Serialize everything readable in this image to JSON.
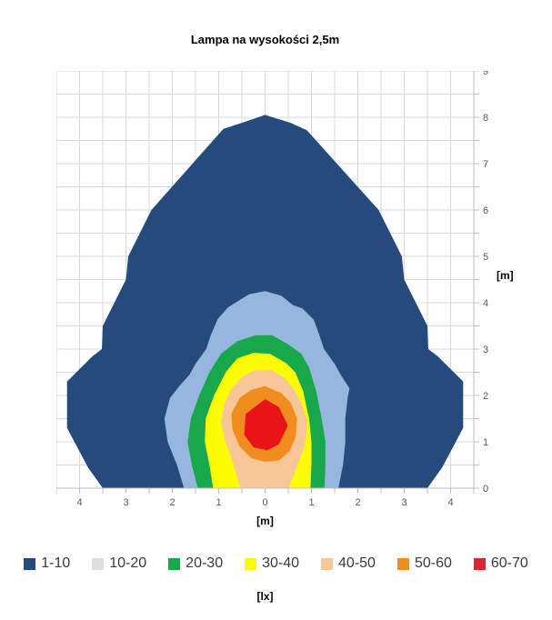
{
  "title": "Lampa na wysokości 2,5m",
  "chart_data": {
    "type": "contour",
    "title": "Lampa na wysokości 2,5m",
    "unit": "lx",
    "x_axis": {
      "unit_label": "[m]",
      "range": [
        -4.5,
        4.5
      ],
      "grid_step": 0.5,
      "ticks": [
        {
          "value": -4,
          "label": "4"
        },
        {
          "value": -3,
          "label": "3"
        },
        {
          "value": -2,
          "label": "2"
        },
        {
          "value": -1,
          "label": "1"
        },
        {
          "value": 0,
          "label": "0"
        },
        {
          "value": 1,
          "label": "1"
        },
        {
          "value": 2,
          "label": "2"
        },
        {
          "value": 3,
          "label": "3"
        },
        {
          "value": 4,
          "label": "4"
        }
      ]
    },
    "y_axis": {
      "unit_label": "[m]",
      "range": [
        0,
        9
      ],
      "grid_step": 0.5,
      "ticks": [
        {
          "value": 0,
          "label": "0"
        },
        {
          "value": 1,
          "label": "1"
        },
        {
          "value": 2,
          "label": "2"
        },
        {
          "value": 3,
          "label": "3"
        },
        {
          "value": 4,
          "label": "4"
        },
        {
          "value": 5,
          "label": "5"
        },
        {
          "value": 6,
          "label": "6"
        },
        {
          "value": 7,
          "label": "7"
        },
        {
          "value": 8,
          "label": "8"
        },
        {
          "value": 9,
          "label": "9"
        }
      ]
    },
    "legend": {
      "unit_label": "[lx]",
      "items": [
        {
          "label": "1-10",
          "swatch_color": "#254B7C"
        },
        {
          "label": "10-20",
          "swatch_color": "#DEDEDE"
        },
        {
          "label": "20-30",
          "swatch_color": "#16A84A"
        },
        {
          "label": "30-40",
          "swatch_color": "#FCFC00"
        },
        {
          "label": "40-50",
          "swatch_color": "#F6C697"
        },
        {
          "label": "50-60",
          "swatch_color": "#F18C1F"
        },
        {
          "label": "60-70",
          "swatch_color": "#D7292F"
        }
      ]
    },
    "colors": {
      "grid": "#D9D9D9",
      "axis": "#BFBFBF",
      "tick_text": "#595959"
    },
    "bands": [
      {
        "range": "1-10",
        "fill": "#254B7C",
        "points": [
          [
            -3.5,
            0
          ],
          [
            -3.82,
            0.45
          ],
          [
            -4.27,
            1.3
          ],
          [
            -4.27,
            2.3
          ],
          [
            -3.72,
            2.85
          ],
          [
            -3.52,
            3.0
          ],
          [
            -3.5,
            3.5
          ],
          [
            -3.0,
            4.5
          ],
          [
            -2.95,
            5.0
          ],
          [
            -2.45,
            6.0
          ],
          [
            -0.9,
            7.75
          ],
          [
            -0.5,
            7.88
          ],
          [
            0,
            8.05
          ],
          [
            0.55,
            7.88
          ],
          [
            0.9,
            7.72
          ],
          [
            2.45,
            6.0
          ],
          [
            2.95,
            5.0
          ],
          [
            3.0,
            4.5
          ],
          [
            3.5,
            3.5
          ],
          [
            3.52,
            3.0
          ],
          [
            3.72,
            2.85
          ],
          [
            4.27,
            2.3
          ],
          [
            4.27,
            1.3
          ],
          [
            3.82,
            0.45
          ],
          [
            3.5,
            0
          ]
        ]
      },
      {
        "range": "10-20",
        "fill": "#97B6DD",
        "points": [
          [
            -1.75,
            0
          ],
          [
            -1.9,
            0.5
          ],
          [
            -2.1,
            1.0
          ],
          [
            -2.17,
            1.5
          ],
          [
            -2.05,
            1.95
          ],
          [
            -1.85,
            2.2
          ],
          [
            -1.63,
            2.45
          ],
          [
            -1.5,
            2.68
          ],
          [
            -1.27,
            3.0
          ],
          [
            -1.17,
            3.3
          ],
          [
            -1.02,
            3.65
          ],
          [
            -0.8,
            3.9
          ],
          [
            -0.35,
            4.18
          ],
          [
            0,
            4.25
          ],
          [
            0.35,
            4.15
          ],
          [
            0.6,
            3.95
          ],
          [
            0.8,
            3.88
          ],
          [
            1.05,
            3.63
          ],
          [
            1.17,
            3.3
          ],
          [
            1.27,
            3.0
          ],
          [
            1.5,
            2.68
          ],
          [
            1.63,
            2.45
          ],
          [
            1.82,
            2.15
          ],
          [
            1.78,
            1.95
          ],
          [
            1.73,
            1.5
          ],
          [
            1.73,
            1.0
          ],
          [
            1.68,
            0.5
          ],
          [
            1.58,
            0
          ]
        ]
      },
      {
        "range": "20-30",
        "fill": "#16A84A",
        "points": [
          [
            -1.45,
            0
          ],
          [
            -1.58,
            0.5
          ],
          [
            -1.67,
            1.0
          ],
          [
            -1.6,
            1.5
          ],
          [
            -1.42,
            2.0
          ],
          [
            -1.2,
            2.5
          ],
          [
            -0.95,
            2.9
          ],
          [
            -0.6,
            3.17
          ],
          [
            -0.2,
            3.3
          ],
          [
            0.15,
            3.3
          ],
          [
            0.5,
            3.1
          ],
          [
            0.78,
            2.9
          ],
          [
            0.95,
            2.6
          ],
          [
            1.1,
            2.1
          ],
          [
            1.22,
            1.5
          ],
          [
            1.3,
            1.0
          ],
          [
            1.3,
            0.5
          ],
          [
            1.28,
            0
          ]
        ]
      },
      {
        "range": "30-40",
        "fill": "#FCFC00",
        "points": [
          [
            -1.12,
            0
          ],
          [
            -1.2,
            0.5
          ],
          [
            -1.3,
            1.0
          ],
          [
            -1.28,
            1.5
          ],
          [
            -1.1,
            2.0
          ],
          [
            -0.85,
            2.5
          ],
          [
            -0.6,
            2.8
          ],
          [
            -0.25,
            2.92
          ],
          [
            0.1,
            2.9
          ],
          [
            0.45,
            2.7
          ],
          [
            0.65,
            2.5
          ],
          [
            0.82,
            2.1
          ],
          [
            0.95,
            1.5
          ],
          [
            1.0,
            1.0
          ],
          [
            1.0,
            0.5
          ],
          [
            0.98,
            0
          ]
        ]
      },
      {
        "range": "40-50",
        "fill": "#F6C697",
        "points": [
          [
            -0.53,
            0
          ],
          [
            -0.68,
            0.5
          ],
          [
            -0.85,
            1.0
          ],
          [
            -0.95,
            1.4
          ],
          [
            -0.88,
            1.8
          ],
          [
            -0.72,
            2.15
          ],
          [
            -0.5,
            2.4
          ],
          [
            -0.25,
            2.53
          ],
          [
            0.12,
            2.55
          ],
          [
            0.42,
            2.38
          ],
          [
            0.65,
            2.1
          ],
          [
            0.82,
            1.75
          ],
          [
            0.92,
            1.35
          ],
          [
            0.85,
            0.9
          ],
          [
            0.7,
            0.5
          ],
          [
            0.51,
            0
          ]
        ]
      },
      {
        "range": "50-60",
        "fill": "#F18C1F",
        "points": [
          [
            0,
            2.2
          ],
          [
            0.35,
            2.05
          ],
          [
            0.55,
            1.85
          ],
          [
            0.69,
            1.5
          ],
          [
            0.66,
            1.1
          ],
          [
            0.53,
            0.8
          ],
          [
            0.3,
            0.6
          ],
          [
            0,
            0.57
          ],
          [
            -0.3,
            0.65
          ],
          [
            -0.55,
            0.9
          ],
          [
            -0.7,
            1.25
          ],
          [
            -0.73,
            1.6
          ],
          [
            -0.55,
            1.95
          ],
          [
            -0.3,
            2.12
          ]
        ]
      },
      {
        "range": "60-70",
        "fill": "#E81417",
        "points": [
          [
            0,
            1.92
          ],
          [
            0.3,
            1.75
          ],
          [
            0.49,
            1.35
          ],
          [
            0.3,
            0.95
          ],
          [
            0.05,
            0.82
          ],
          [
            -0.25,
            0.88
          ],
          [
            -0.45,
            1.15
          ],
          [
            -0.42,
            1.6
          ]
        ]
      }
    ]
  }
}
